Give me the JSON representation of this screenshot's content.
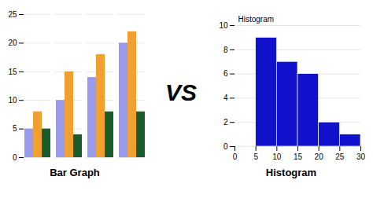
{
  "chart_data": [
    {
      "type": "bar",
      "xlabel": "Bar Graph",
      "annotations": [
        "VS"
      ],
      "categories": [
        null,
        null,
        null,
        null
      ],
      "series": [
        {
          "color": "#9999ee",
          "values": [
            5,
            10,
            14,
            20
          ]
        },
        {
          "color": "#f0a030",
          "values": [
            8,
            15,
            18,
            22
          ]
        },
        {
          "color": "#1a5c2a",
          "values": [
            5,
            4,
            8,
            8
          ]
        }
      ],
      "ylim": [
        0,
        25
      ],
      "yticks": [
        0,
        5,
        10,
        15,
        20,
        25
      ],
      "grid": true,
      "tick_labels": "y"
    },
    {
      "type": "histogram",
      "title": "Histogram",
      "xlabel": "Histogram",
      "bins": [
        5,
        10,
        15,
        20,
        25,
        30
      ],
      "values": [
        9,
        7,
        6,
        2,
        1
      ],
      "color": "#1111cc",
      "xlim": [
        0,
        30
      ],
      "xticks": [
        0,
        5,
        10,
        15,
        20,
        25,
        30
      ],
      "ylim": [
        0,
        10
      ],
      "yticks": [
        0,
        2,
        4,
        6,
        8,
        10
      ],
      "grid": true
    }
  ]
}
